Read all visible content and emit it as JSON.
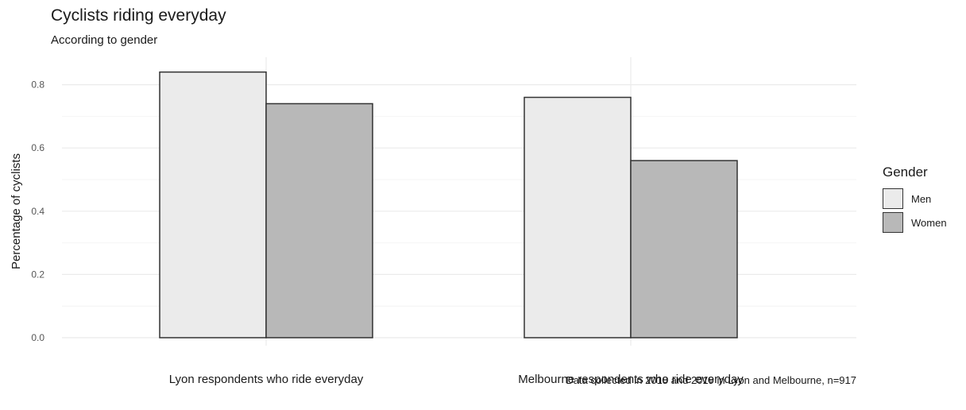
{
  "chart_data": {
    "type": "bar",
    "title": "Cyclists riding everyday",
    "subtitle": "According to gender",
    "caption": "Data collected in 2018 and 2019 in Lyon and Melbourne, n=917",
    "xlabel": "",
    "ylabel": "Percentage of cyclists",
    "categories": [
      "Lyon respondents who ride everyday",
      "Melbourne respondents who ride everyday"
    ],
    "series": [
      {
        "name": "Men",
        "values": [
          0.84,
          0.76
        ],
        "color": "#ebebeb"
      },
      {
        "name": "Women",
        "values": [
          0.74,
          0.56
        ],
        "color": "#b8b8b8"
      }
    ],
    "ylim": [
      0,
      0.85
    ],
    "yticks": [
      0.0,
      0.2,
      0.4,
      0.6,
      0.8
    ],
    "ytick_labels": [
      "0.0",
      "0.2",
      "0.4",
      "0.6",
      "0.8"
    ],
    "legend": {
      "title": "Gender",
      "position": "right"
    },
    "grid": true,
    "bar_border_color": "#333333",
    "grid_color": "#ebebeb"
  }
}
